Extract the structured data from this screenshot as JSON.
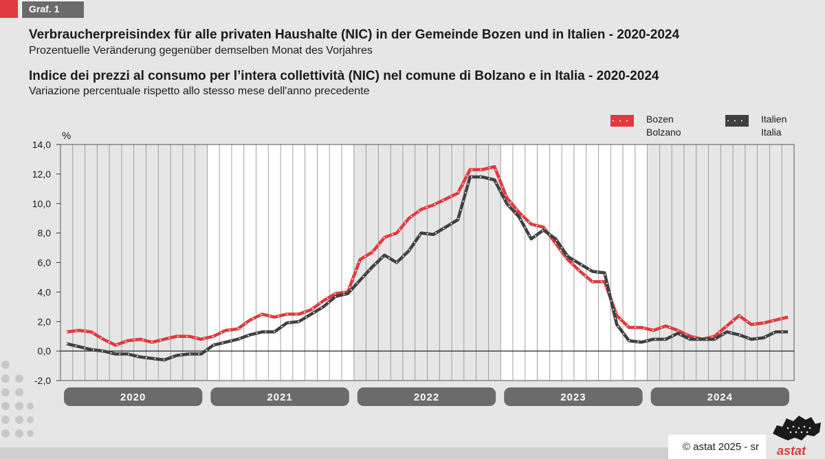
{
  "graph_label": "Graf. 1",
  "title_de": "Verbraucherpreisindex für alle privaten Haushalte (NIC) in der Gemeinde Bozen und in Italien - 2020-2024",
  "subtitle_de": "Prozentuelle Veränderung gegenüber demselben Monat des Vorjahres",
  "title_it": "Indice dei prezzi al consumo per l’intera collettività (NIC) nel comune di Bolzano e in Italia - 2020-2024",
  "subtitle_it": "Variazione percentuale rispetto allo stesso mese dell'anno precedente",
  "footer": "©  astat 2025 - sr",
  "logo": "astat",
  "colors": {
    "bozen": "#e03a3e",
    "italien": "#404040",
    "band_dark": "#e6e6e6",
    "band_light": "#ffffff",
    "year_pill": "#6b6b6b"
  },
  "chart_data": {
    "type": "line",
    "unit_label": "%",
    "ylim": [
      -2,
      14
    ],
    "yticks": [
      "14,0",
      "12,0",
      "10,0",
      "8,0",
      "6,0",
      "4,0",
      "2,0",
      "0,0",
      "-2,0"
    ],
    "years": [
      "2020",
      "2021",
      "2022",
      "2023",
      "2024"
    ],
    "grid": "vertical monthly lines, alternating yearly shaded bands",
    "legend_placement": "top-right",
    "series": [
      {
        "name": "Bozen\nBolzano",
        "legend": [
          "Bozen",
          "Bolzano"
        ],
        "color": "#e03a3e",
        "values": [
          1.3,
          1.4,
          1.3,
          0.8,
          0.4,
          0.7,
          0.8,
          0.6,
          0.8,
          1.0,
          1.0,
          0.8,
          1.0,
          1.4,
          1.5,
          2.1,
          2.5,
          2.3,
          2.5,
          2.5,
          2.8,
          3.4,
          3.9,
          4.0,
          6.2,
          6.7,
          7.7,
          8.0,
          9.0,
          9.6,
          9.9,
          10.3,
          10.7,
          12.3,
          12.3,
          12.5,
          10.4,
          9.4,
          8.6,
          8.4,
          7.3,
          6.2,
          5.4,
          4.7,
          4.7,
          2.4,
          1.6,
          1.6,
          1.4,
          1.7,
          1.4,
          1.0,
          0.8,
          1.0,
          1.7,
          2.4,
          1.8,
          1.9,
          2.1,
          2.3
        ]
      },
      {
        "name": "Italien\nItalia",
        "legend": [
          "Italien",
          "Italia"
        ],
        "color": "#404040",
        "values": [
          0.5,
          0.3,
          0.1,
          0.0,
          -0.2,
          -0.2,
          -0.4,
          -0.5,
          -0.6,
          -0.3,
          -0.2,
          -0.2,
          0.4,
          0.6,
          0.8,
          1.1,
          1.3,
          1.3,
          1.9,
          2.0,
          2.5,
          3.0,
          3.7,
          3.9,
          4.8,
          5.7,
          6.5,
          6.0,
          6.8,
          8.0,
          7.9,
          8.4,
          8.9,
          11.8,
          11.8,
          11.6,
          10.0,
          9.1,
          7.6,
          8.2,
          7.6,
          6.4,
          5.9,
          5.4,
          5.3,
          1.8,
          0.7,
          0.6,
          0.8,
          0.8,
          1.2,
          0.8,
          0.8,
          0.8,
          1.3,
          1.1,
          0.8,
          0.9,
          1.3,
          1.3
        ]
      }
    ]
  }
}
